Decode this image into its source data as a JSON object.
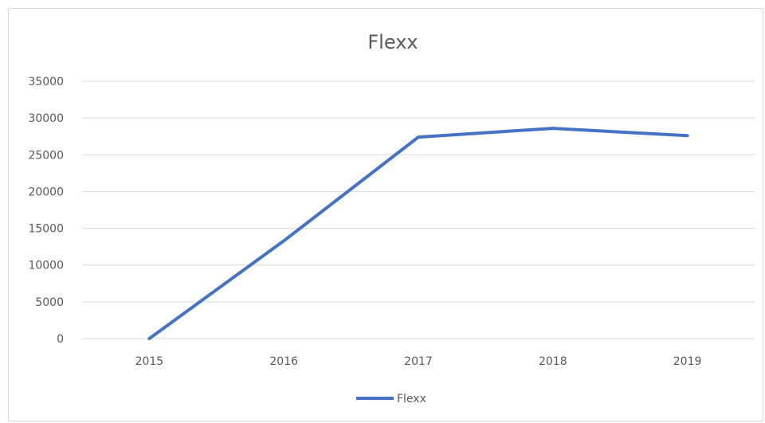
{
  "chart_data": {
    "type": "line",
    "title": "Flexx",
    "categories": [
      "2015",
      "2016",
      "2017",
      "2018",
      "2019"
    ],
    "series": [
      {
        "name": "Flexx",
        "values": [
          0,
          13300,
          27400,
          28600,
          27600
        ],
        "color": "#4472c4"
      }
    ],
    "ylim": [
      0,
      35000
    ],
    "yticks": [
      0,
      5000,
      10000,
      15000,
      20000,
      25000,
      30000,
      35000
    ],
    "grid": true,
    "legend_position": "bottom",
    "colors": {
      "gridline": "#d9d9d9",
      "text": "#595959"
    }
  }
}
